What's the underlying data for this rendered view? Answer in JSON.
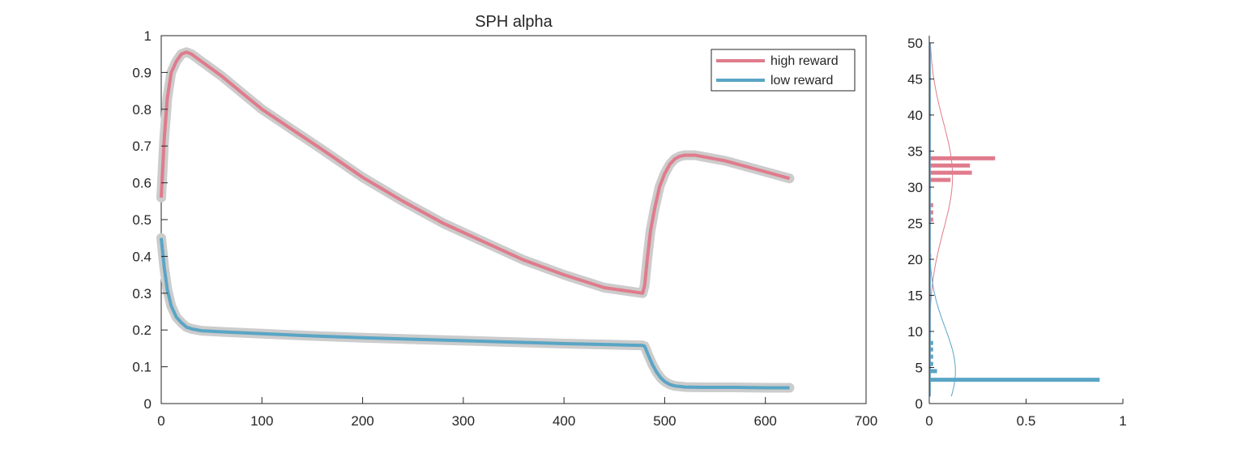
{
  "chart_data": [
    {
      "type": "line",
      "title": "SPH  alpha",
      "xlabel": "",
      "ylabel": "",
      "xlim": [
        0,
        700
      ],
      "ylim": [
        0,
        1
      ],
      "x_ticks": [
        0,
        100,
        200,
        300,
        400,
        500,
        600,
        700
      ],
      "y_ticks": [
        0,
        0.1,
        0.2,
        0.3,
        0.4,
        0.5,
        0.6,
        0.7,
        0.8,
        0.9,
        1
      ],
      "grid": false,
      "legend_position": "top-right",
      "series": [
        {
          "name": "high reward",
          "color": "#e07b8c",
          "band_color": "#cccccc",
          "x": [
            0,
            3,
            6,
            10,
            15,
            20,
            25,
            30,
            40,
            60,
            80,
            100,
            130,
            160,
            200,
            240,
            280,
            320,
            360,
            400,
            440,
            478,
            480,
            483,
            486,
            490,
            495,
            500,
            505,
            510,
            515,
            520,
            530,
            560,
            600,
            624
          ],
          "y": [
            0.56,
            0.72,
            0.83,
            0.9,
            0.93,
            0.95,
            0.955,
            0.95,
            0.93,
            0.89,
            0.845,
            0.8,
            0.745,
            0.69,
            0.615,
            0.55,
            0.49,
            0.44,
            0.39,
            0.35,
            0.315,
            0.3,
            0.32,
            0.4,
            0.47,
            0.53,
            0.59,
            0.625,
            0.65,
            0.665,
            0.672,
            0.675,
            0.675,
            0.66,
            0.63,
            0.612
          ]
        },
        {
          "name": "low reward",
          "color": "#5aa5c5",
          "band_color": "#cccccc",
          "x": [
            0,
            3,
            6,
            10,
            15,
            20,
            25,
            30,
            40,
            60,
            100,
            150,
            200,
            250,
            300,
            350,
            400,
            450,
            478,
            480,
            484,
            488,
            492,
            496,
            500,
            505,
            510,
            520,
            540,
            570,
            600,
            624
          ],
          "y": [
            0.45,
            0.37,
            0.31,
            0.265,
            0.235,
            0.22,
            0.208,
            0.203,
            0.198,
            0.195,
            0.19,
            0.184,
            0.179,
            0.175,
            0.171,
            0.167,
            0.163,
            0.16,
            0.158,
            0.156,
            0.13,
            0.105,
            0.085,
            0.07,
            0.06,
            0.052,
            0.048,
            0.045,
            0.044,
            0.044,
            0.043,
            0.043
          ]
        }
      ]
    },
    {
      "type": "bar",
      "orientation": "horizontal",
      "title": "",
      "xlim": [
        0,
        1
      ],
      "ylim": [
        0,
        51
      ],
      "x_ticks": [
        0,
        0.5,
        1
      ],
      "x_tick_labels": [
        "0",
        "0.5",
        "1"
      ],
      "y_ticks": [
        0,
        5,
        10,
        15,
        20,
        25,
        30,
        35,
        40,
        45,
        50
      ],
      "grid": false,
      "series": [
        {
          "name": "",
          "color": "#e07b8c",
          "bins": [
            20.5,
            25.5,
            26.5,
            27.5,
            31,
            32,
            33,
            34
          ],
          "values": [
            0.01,
            0.02,
            0.02,
            0.02,
            0.11,
            0.22,
            0.21,
            0.34
          ],
          "fit_curve": {
            "mean": 31.5,
            "sd": 7.5,
            "peak": 0.12
          }
        },
        {
          "name": "",
          "color": "#5aa5c5",
          "bins": [
            3.3,
            4.5,
            5.5,
            6.5,
            7.5,
            8.4
          ],
          "values": [
            0.88,
            0.04,
            0.02,
            0.02,
            0.02,
            0.02
          ],
          "fit_curve": {
            "mean": 4.5,
            "sd": 6.0,
            "peak": 0.135
          }
        }
      ]
    }
  ]
}
